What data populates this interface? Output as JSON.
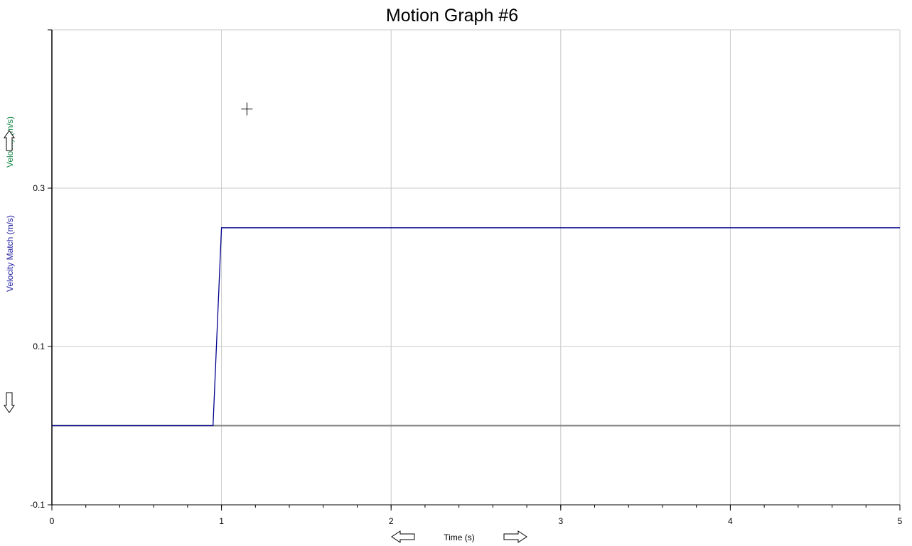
{
  "chart_data": {
    "type": "line",
    "title": "Motion Graph #6",
    "xlabel": "Time (s)",
    "ylabels": [
      {
        "text": "Velocity Match (m/s)",
        "color": "#2020a0"
      },
      {
        "text": "Velocity (m/s)",
        "color": "#1a8a4a"
      }
    ],
    "xlim": [
      0,
      5
    ],
    "ylim": [
      -0.1,
      0.5
    ],
    "xticks": [
      0,
      1,
      2,
      3,
      4,
      5
    ],
    "yticks": [
      -0.1,
      0.1,
      0.3
    ],
    "xtick_labels": [
      "0",
      "1",
      "2",
      "3",
      "4",
      "5"
    ],
    "ytick_labels": [
      "-0.1",
      "0.1",
      "0.3"
    ],
    "grid": true,
    "series": [
      {
        "color": "#00008b",
        "x": [
          0,
          0.95,
          1.0,
          5.0
        ],
        "y": [
          0.0,
          0.0,
          0.25,
          0.25
        ]
      }
    ],
    "cursor_marker": {
      "x": 1.15,
      "y": 0.4
    }
  }
}
